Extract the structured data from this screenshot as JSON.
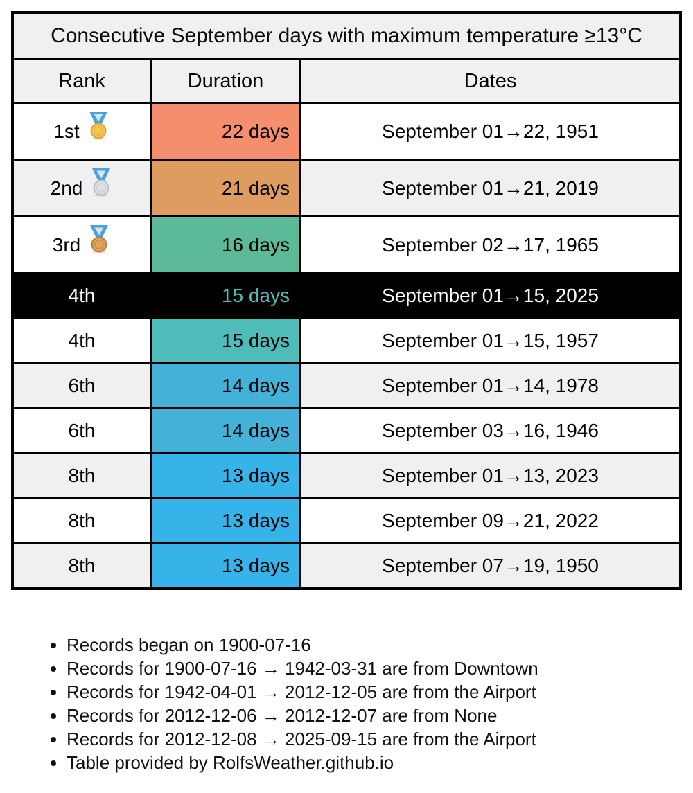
{
  "table": {
    "title": "Consecutive September days with maximum temperature ≥13°C",
    "columns": [
      "Rank",
      "Duration",
      "Dates"
    ],
    "rows": [
      {
        "rank": "1st",
        "medal": "gold",
        "duration": "22 days",
        "dates": "September 01→22, 1951",
        "duration_bg": "#f48e6c",
        "duration_color": "#000000",
        "highlight": false
      },
      {
        "rank": "2nd",
        "medal": "silver",
        "duration": "21 days",
        "dates": "September 01→21, 2019",
        "duration_bg": "#e09b61",
        "duration_color": "#000000",
        "highlight": false
      },
      {
        "rank": "3rd",
        "medal": "bronze",
        "duration": "16 days",
        "dates": "September 02→17, 1965",
        "duration_bg": "#5cba99",
        "duration_color": "#000000",
        "highlight": false
      },
      {
        "rank": "4th",
        "medal": null,
        "duration": "15 days",
        "dates": "September 01→15, 2025",
        "duration_bg": "#000000",
        "duration_color": "#4ebdba",
        "highlight": true
      },
      {
        "rank": "4th",
        "medal": null,
        "duration": "15 days",
        "dates": "September 01→15, 1957",
        "duration_bg": "#4ebdba",
        "duration_color": "#000000",
        "highlight": false
      },
      {
        "rank": "6th",
        "medal": null,
        "duration": "14 days",
        "dates": "September 01→14, 1978",
        "duration_bg": "#43b1d8",
        "duration_color": "#000000",
        "highlight": false
      },
      {
        "rank": "6th",
        "medal": null,
        "duration": "14 days",
        "dates": "September 03→16, 1946",
        "duration_bg": "#43b1d8",
        "duration_color": "#000000",
        "highlight": false
      },
      {
        "rank": "8th",
        "medal": null,
        "duration": "13 days",
        "dates": "September 01→13, 2023",
        "duration_bg": "#36b3e8",
        "duration_color": "#000000",
        "highlight": false
      },
      {
        "rank": "8th",
        "medal": null,
        "duration": "13 days",
        "dates": "September 09→21, 2022",
        "duration_bg": "#36b3e8",
        "duration_color": "#000000",
        "highlight": false
      },
      {
        "rank": "8th",
        "medal": null,
        "duration": "13 days",
        "dates": "September 07→19, 1950",
        "duration_bg": "#36b3e8",
        "duration_color": "#000000",
        "highlight": false
      }
    ]
  },
  "footnotes": [
    "Records began on 1900-07-16",
    "Records for 1900-07-16 → 1942-03-31 are from Downtown",
    "Records for 1942-04-01 → 2012-12-05 are from the Airport",
    "Records for 2012-12-06 → 2012-12-07 are from None",
    "Records for 2012-12-08 → 2025-09-15 are from the Airport",
    "Table provided by RolfsWeather.github.io"
  ],
  "colors": {
    "header_bg": "#f0f0f0",
    "alt_row_bg": "#f0f0f0",
    "border": "#000000",
    "highlight_row_bg": "#000000",
    "highlight_text": "#ffffff",
    "highlight_duration_text": "#4ebdba",
    "ribbon_blue": "#4da0dc",
    "ribbon_inner": "#cfe9f7",
    "medals": {
      "gold": {
        "fill": "#f2c84b",
        "rim": "#d9a43b"
      },
      "silver": {
        "fill": "#dcdfe3",
        "rim": "#b9bfc7"
      },
      "bronze": {
        "fill": "#dfa15e",
        "rim": "#b67d3c"
      }
    }
  },
  "chart_data": {
    "type": "table",
    "title": "Consecutive September days with maximum temperature ≥13°C",
    "columns": [
      "Rank",
      "Duration",
      "Dates"
    ],
    "rows": [
      [
        "1st",
        "22 days",
        "September 01→22, 1951"
      ],
      [
        "2nd",
        "21 days",
        "September 01→21, 2019"
      ],
      [
        "3rd",
        "16 days",
        "September 02→17, 1965"
      ],
      [
        "4th",
        "15 days",
        "September 01→15, 2025"
      ],
      [
        "4th",
        "15 days",
        "September 01→15, 1957"
      ],
      [
        "6th",
        "14 days",
        "September 01→14, 1978"
      ],
      [
        "6th",
        "14 days",
        "September 03→16, 1946"
      ],
      [
        "8th",
        "13 days",
        "September 01→13, 2023"
      ],
      [
        "8th",
        "13 days",
        "September 09→21, 2022"
      ],
      [
        "8th",
        "13 days",
        "September 07→19, 1950"
      ]
    ],
    "highlighted_row_index": 3,
    "duration_values_days": [
      22,
      21,
      16,
      15,
      15,
      14,
      14,
      13,
      13,
      13
    ]
  }
}
